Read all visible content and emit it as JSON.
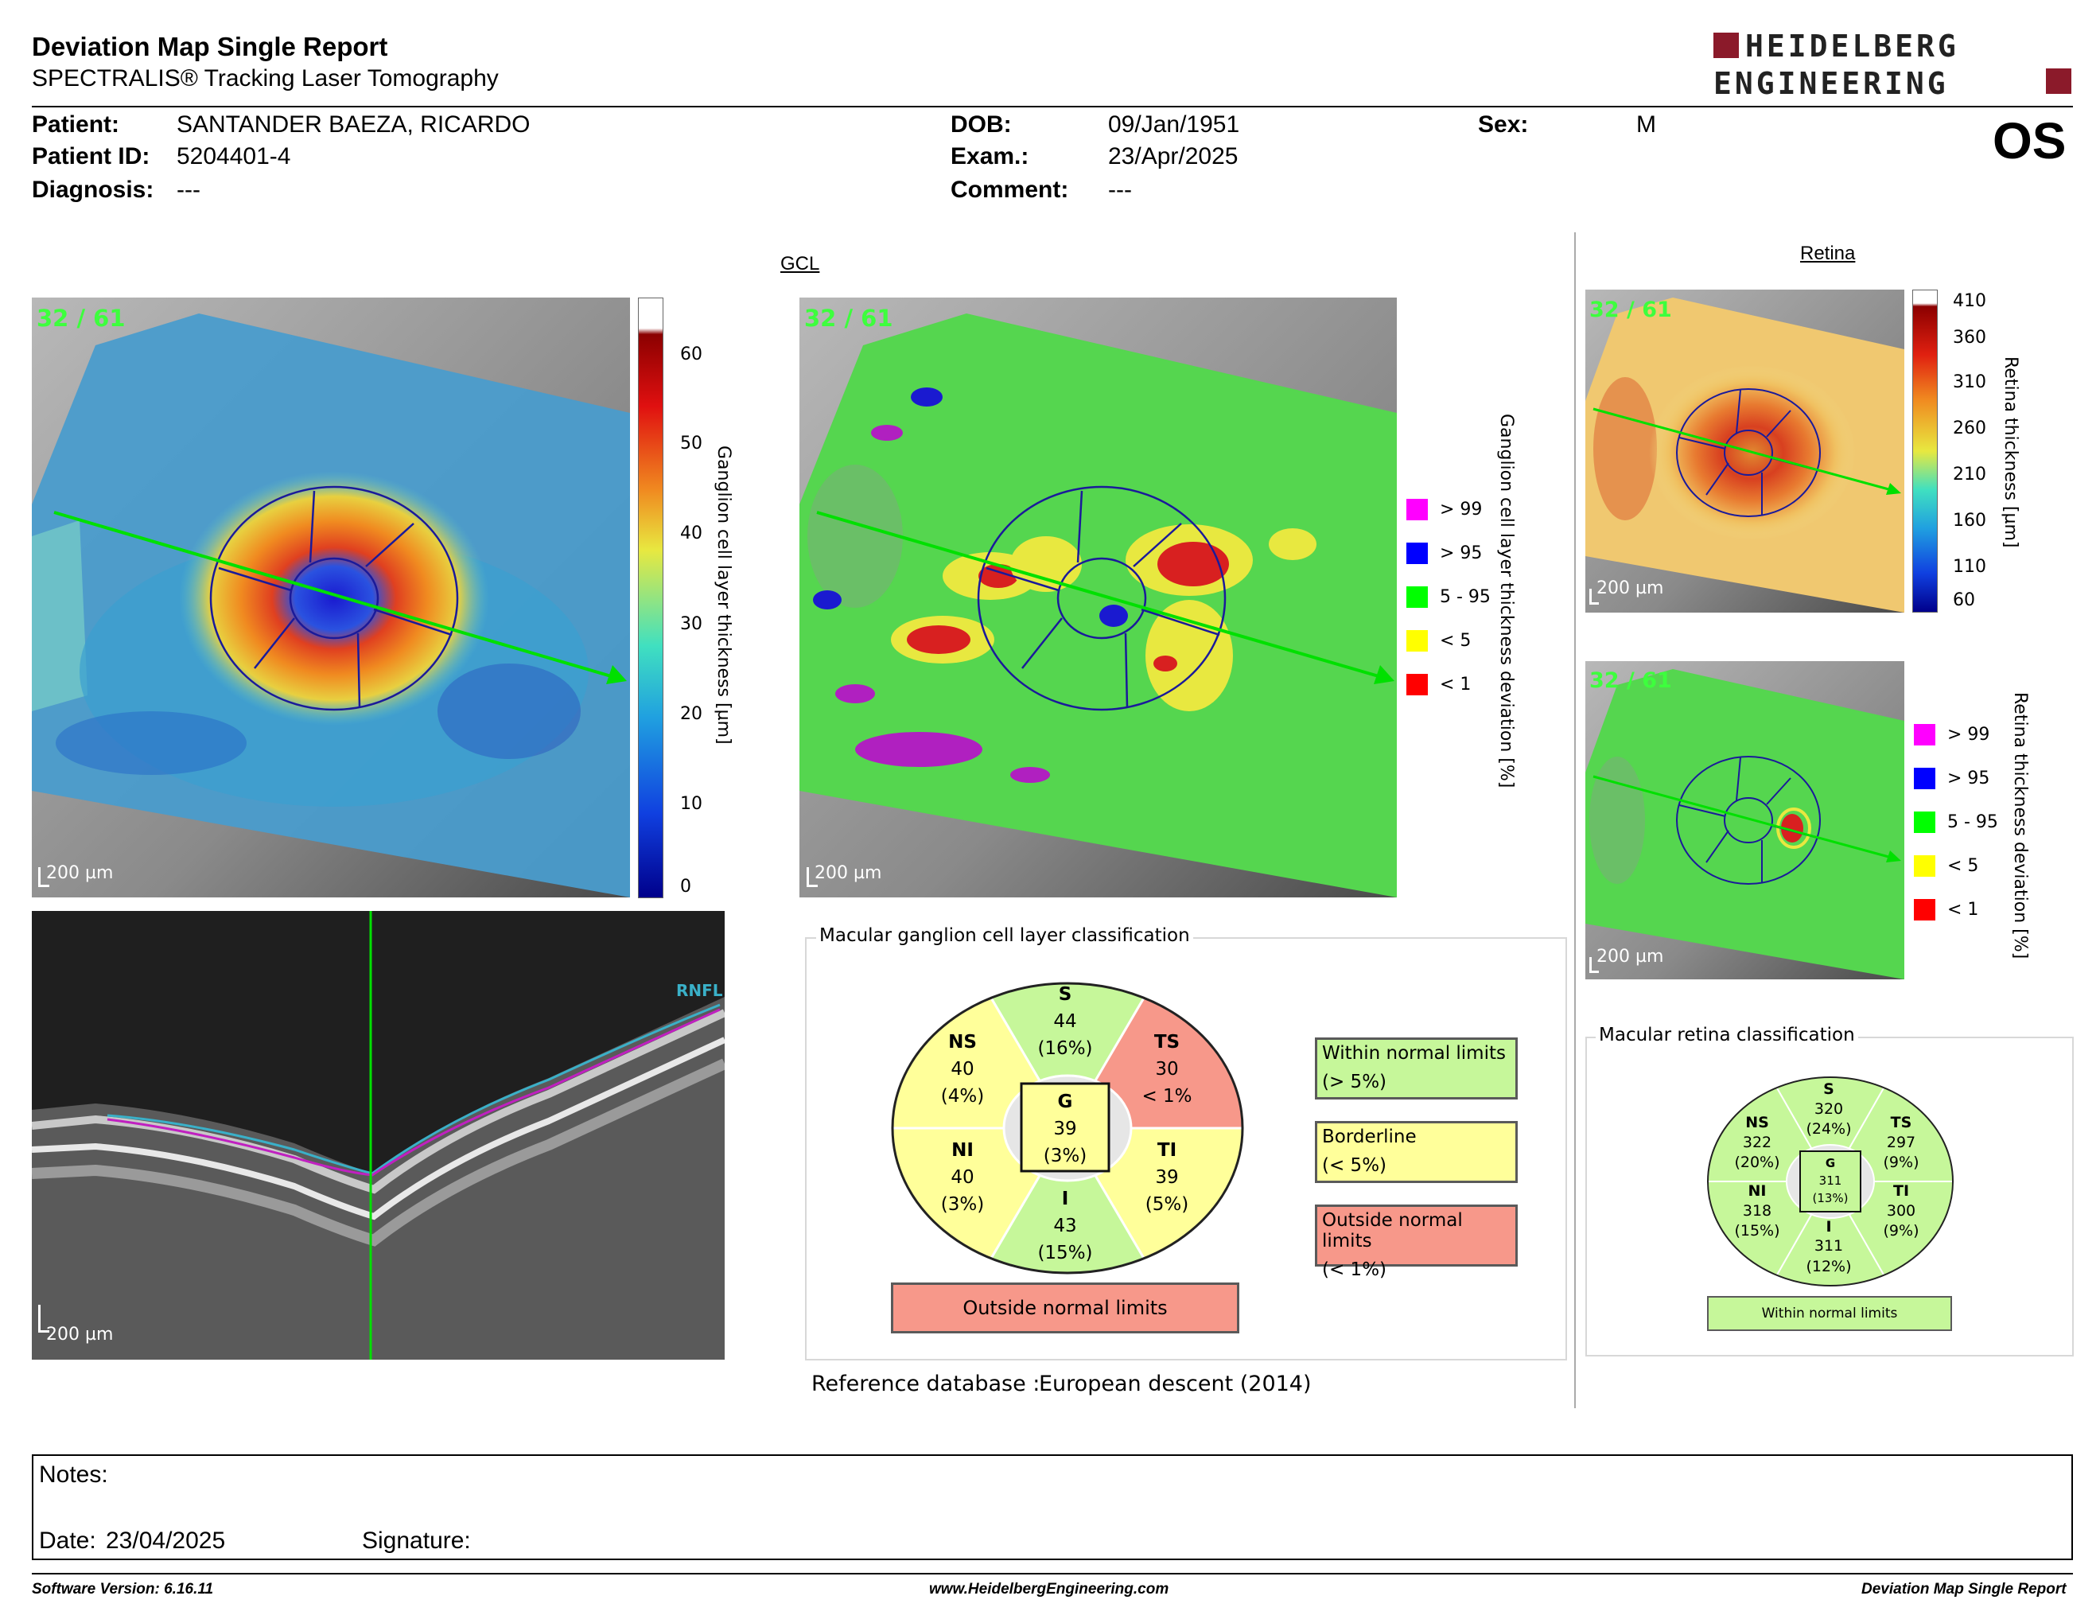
{
  "header": {
    "title": "Deviation Map Single Report",
    "subtitle": "SPECTRALIS® Tracking Laser Tomography",
    "logo_line1": "HEIDELBERG",
    "logo_line2": "ENGINEERING",
    "eye": "OS"
  },
  "patient": {
    "name_label": "Patient:",
    "name": "SANTANDER BAEZA, RICARDO",
    "id_label": "Patient ID:",
    "id": "5204401-4",
    "diagnosis_label": "Diagnosis:",
    "diagnosis": "---",
    "dob_label": "DOB:",
    "dob": "09/Jan/1951",
    "exam_label": "Exam.:",
    "exam": "23/Apr/2025",
    "comment_label": "Comment:",
    "comment": "---",
    "sex_label": "Sex:",
    "sex": "M"
  },
  "gcl": {
    "section_title": "GCL",
    "frame_count": "32 / 61",
    "scale_bar": "200 µm",
    "thickness_colorbar": {
      "label": "Ganglion cell layer thickness [µm]",
      "ticks": [
        "60",
        "50",
        "40",
        "30",
        "20",
        "10",
        "0"
      ]
    },
    "deviation_label": "Ganglion cell layer thickness deviation [%]",
    "deviation_legend": [
      {
        "label": "> 99",
        "color": "#ff00ff"
      },
      {
        "label": "> 95",
        "color": "#0000ff"
      },
      {
        "label": "5 - 95",
        "color": "#00ff00"
      },
      {
        "label": "< 5",
        "color": "#ffff00"
      },
      {
        "label": "< 1",
        "color": "#ff0000"
      }
    ],
    "oct_layer_label": "RNFL"
  },
  "gcl_classification": {
    "title": "Macular ganglion cell layer classification",
    "sectors": {
      "S": {
        "label": "S",
        "value": "44",
        "pct": "(16%)",
        "status": "within"
      },
      "NS": {
        "label": "NS",
        "value": "40",
        "pct": "(4%)",
        "status": "borderline"
      },
      "TS": {
        "label": "TS",
        "value": "30",
        "pct": "< 1%",
        "status": "outside"
      },
      "NI": {
        "label": "NI",
        "value": "40",
        "pct": "(3%)",
        "status": "borderline"
      },
      "TI": {
        "label": "TI",
        "value": "39",
        "pct": "(5%)",
        "status": "borderline"
      },
      "I": {
        "label": "I",
        "value": "43",
        "pct": "(15%)",
        "status": "within"
      },
      "G": {
        "label": "G",
        "value": "39",
        "pct": "(3%)",
        "status": "borderline"
      }
    },
    "overall": "Outside normal limits",
    "key": [
      {
        "line1": "Within normal limits",
        "line2": "(> 5%)"
      },
      {
        "line1": "Borderline",
        "line2": "(< 5%)"
      },
      {
        "line1": "Outside normal limits",
        "line2": "(< 1%)"
      }
    ],
    "reference_label": "Reference database :",
    "reference_value": "European descent (2014)"
  },
  "retina": {
    "section_title": "Retina",
    "frame_count": "32 / 61",
    "scale_bar": "200 µm",
    "thickness_colorbar": {
      "label": "Retina thickness [µm]",
      "ticks": [
        "410",
        "360",
        "310",
        "260",
        "210",
        "160",
        "110",
        "60"
      ]
    },
    "deviation_label": "Retina thickness deviation [%]",
    "deviation_legend": [
      {
        "label": "> 99",
        "color": "#ff00ff"
      },
      {
        "label": "> 95",
        "color": "#0000ff"
      },
      {
        "label": "5 - 95",
        "color": "#00ff00"
      },
      {
        "label": "< 5",
        "color": "#ffff00"
      },
      {
        "label": "< 1",
        "color": "#ff0000"
      }
    ]
  },
  "retina_classification": {
    "title": "Macular retina classification",
    "sectors": {
      "S": {
        "label": "S",
        "value": "320",
        "pct": "(24%)"
      },
      "NS": {
        "label": "NS",
        "value": "322",
        "pct": "(20%)"
      },
      "TS": {
        "label": "TS",
        "value": "297",
        "pct": "(9%)"
      },
      "NI": {
        "label": "NI",
        "value": "318",
        "pct": "(15%)"
      },
      "TI": {
        "label": "TI",
        "value": "300",
        "pct": "(9%)"
      },
      "I": {
        "label": "I",
        "value": "311",
        "pct": "(12%)"
      },
      "G": {
        "label": "G",
        "value": "311",
        "pct": "(13%)"
      }
    },
    "overall": "Within normal limits"
  },
  "notes": {
    "notes_label": "Notes:",
    "date_label": "Date:",
    "date_value": "23/04/2025",
    "signature_label": "Signature:"
  },
  "footer": {
    "software": "Software Version: 6.16.11",
    "website": "www.HeidelbergEngineering.com",
    "report_name": "Deviation Map Single Report"
  },
  "colors": {
    "within": "#c6f79a",
    "borderline": "#ffff9a",
    "outside": "#f7988a",
    "deviation_green": "#55d64f",
    "accent_maroon": "#8b1a2a",
    "arrow": "#00e000"
  }
}
